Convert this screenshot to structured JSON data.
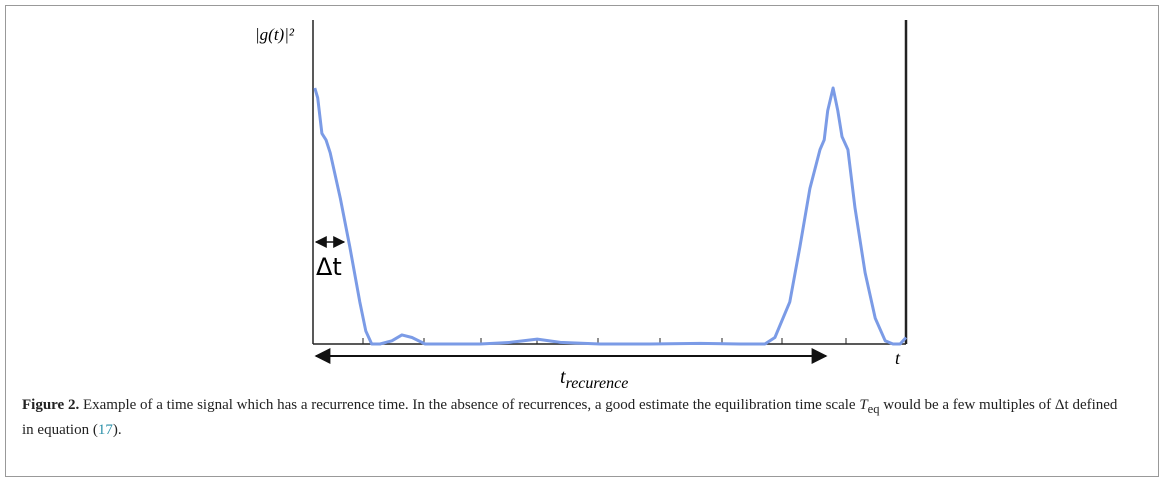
{
  "chart_data": {
    "type": "line",
    "ylabel": "|g(t)|²",
    "xlabel": "t",
    "annotations": {
      "delta": "Δt",
      "recurrence": "t",
      "recurrence_sub": "recurence"
    },
    "xlim": [
      0,
      100
    ],
    "ylim": [
      0,
      1
    ],
    "series": [
      {
        "color": "#7b9be6",
        "x": [
          0.3,
          0.8,
          1.5,
          2.2,
          2.9,
          4.6,
          6.2,
          7.9,
          8.9,
          9.9,
          11.3,
          13.3,
          15.0,
          16.7,
          18.9,
          23.1,
          28.2,
          33.2,
          37.8,
          41.7,
          48.4,
          56.8,
          65.3,
          72.0,
          76.2,
          77.9,
          80.4,
          82.1,
          83.8,
          85.5,
          86.2,
          86.8,
          87.7,
          88.5,
          89.2,
          90.2,
          91.4,
          93.1,
          94.8,
          96.5,
          97.8,
          99.0,
          100
        ],
        "values": [
          0.79,
          0.76,
          0.65,
          0.63,
          0.59,
          0.45,
          0.3,
          0.13,
          0.04,
          0.0,
          0.0,
          0.01,
          0.028,
          0.02,
          0.0,
          0.0,
          0.0,
          0.005,
          0.015,
          0.005,
          0.0,
          0.0,
          0.002,
          0.0,
          0.0,
          0.02,
          0.13,
          0.3,
          0.48,
          0.6,
          0.63,
          0.72,
          0.79,
          0.72,
          0.64,
          0.6,
          0.42,
          0.22,
          0.08,
          0.01,
          0.0,
          0.0,
          0.02
        ]
      }
    ]
  },
  "caption": {
    "label": "Figure 2.",
    "parts": [
      "Example of a time signal which has a recurrence time. In the absence of recurrences, a good estimate the equilibration time scale ",
      "T",
      "eq",
      " would be a few multiples of ",
      "Δt",
      " defined in equation (",
      "17",
      ")."
    ]
  }
}
